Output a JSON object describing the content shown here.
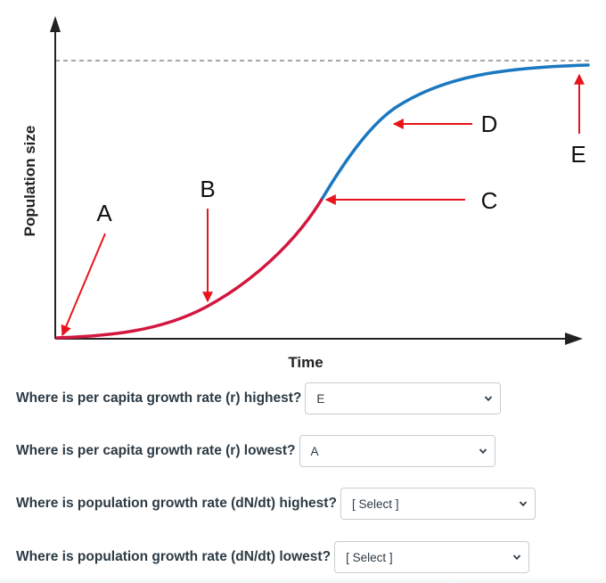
{
  "figure": {
    "y_axis_label": "Population size",
    "x_axis_label": "Time",
    "markers": [
      {
        "letter": "A"
      },
      {
        "letter": "B"
      },
      {
        "letter": "C"
      },
      {
        "letter": "D"
      },
      {
        "letter": "E"
      }
    ],
    "colors": {
      "lower_curve": "#d2173f",
      "upper_curve": "#1b78c0",
      "arrows": "#e8141c",
      "axes": "#222222",
      "carrying_capacity_line": "#8a8a8a"
    }
  },
  "questions": [
    {
      "text": "Where is per capita growth rate (r) highest?",
      "selected": "E"
    },
    {
      "text": "Where is per capita growth rate (r) lowest?",
      "selected": "A"
    },
    {
      "text": "Where is population growth rate (dN/dt) highest?",
      "selected": "[ Select ]"
    },
    {
      "text": "Where is population growth rate (dN/dt) lowest?",
      "selected": "[ Select ]"
    }
  ],
  "icons": {
    "dropdown": "chevron-down-icon"
  }
}
